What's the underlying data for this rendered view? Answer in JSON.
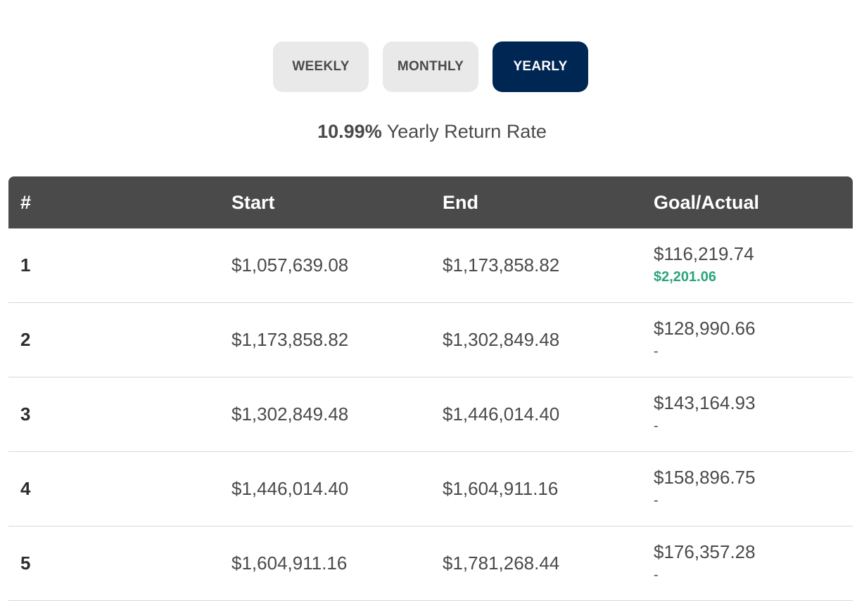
{
  "toggles": {
    "weekly": "WEEKLY",
    "monthly": "MONTHLY",
    "yearly": "YEARLY",
    "active": "yearly"
  },
  "rate": {
    "value": "10.99%",
    "label": "Yearly Return Rate"
  },
  "table": {
    "headers": {
      "num": "#",
      "start": "Start",
      "end": "End",
      "goal_actual": "Goal/Actual"
    },
    "rows": [
      {
        "num": "1",
        "start": "$1,057,639.08",
        "end": "$1,173,858.82",
        "goal": "$116,219.74",
        "actual": "$2,201.06"
      },
      {
        "num": "2",
        "start": "$1,173,858.82",
        "end": "$1,302,849.48",
        "goal": "$128,990.66",
        "actual": "-"
      },
      {
        "num": "3",
        "start": "$1,302,849.48",
        "end": "$1,446,014.40",
        "goal": "$143,164.93",
        "actual": "-"
      },
      {
        "num": "4",
        "start": "$1,446,014.40",
        "end": "$1,604,911.16",
        "goal": "$158,896.75",
        "actual": "-"
      },
      {
        "num": "5",
        "start": "$1,604,911.16",
        "end": "$1,781,268.44",
        "goal": "$176,357.28",
        "actual": "-"
      }
    ]
  },
  "colors": {
    "active_toggle": "#002654",
    "header_bg": "#4a4a4a",
    "positive_actual": "#2aa57a"
  }
}
